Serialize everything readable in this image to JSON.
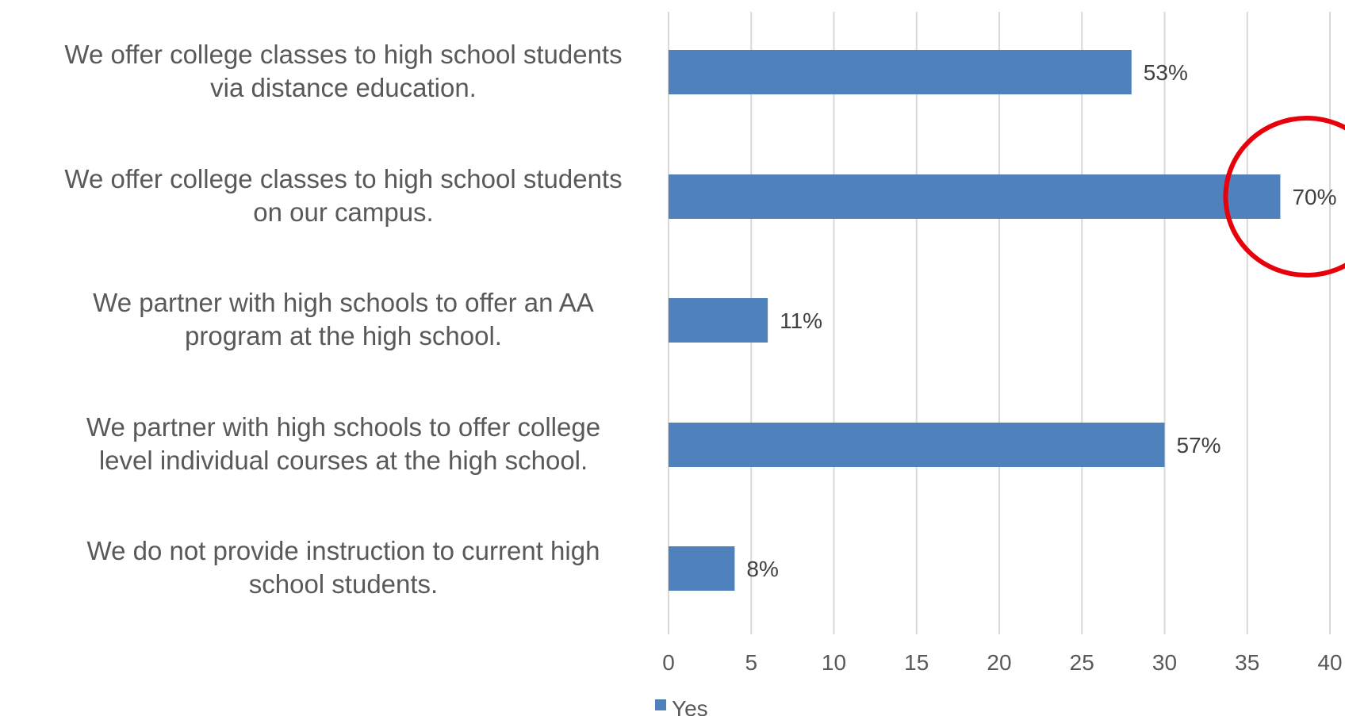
{
  "chart_data": {
    "type": "bar",
    "orientation": "horizontal",
    "categories": [
      [
        "We offer college classes to high school students",
        "via distance education."
      ],
      [
        "We offer college classes to high school students",
        "on our campus."
      ],
      [
        "We partner with high schools to offer an AA",
        "program at the high school."
      ],
      [
        "We partner with high schools to offer college",
        "level individual courses at the high school."
      ],
      [
        "We do not provide instruction to current high",
        "school students."
      ]
    ],
    "series": [
      {
        "name": "Yes",
        "values": [
          28,
          37,
          6,
          30,
          4
        ],
        "data_labels": [
          "53%",
          "70%",
          "11%",
          "57%",
          "8%"
        ],
        "color": "#4f81bd"
      }
    ],
    "xlim": [
      0,
      40
    ],
    "xticks": [
      "0",
      "5",
      "10",
      "15",
      "20",
      "25",
      "30",
      "35",
      "40"
    ],
    "grid": "vertical",
    "legend": "bottom",
    "highlight": {
      "category_index": 1,
      "shape": "circle",
      "color": "#e8000b"
    },
    "colors": {
      "gridline": "#d9d9d9",
      "text": "#595959"
    }
  }
}
